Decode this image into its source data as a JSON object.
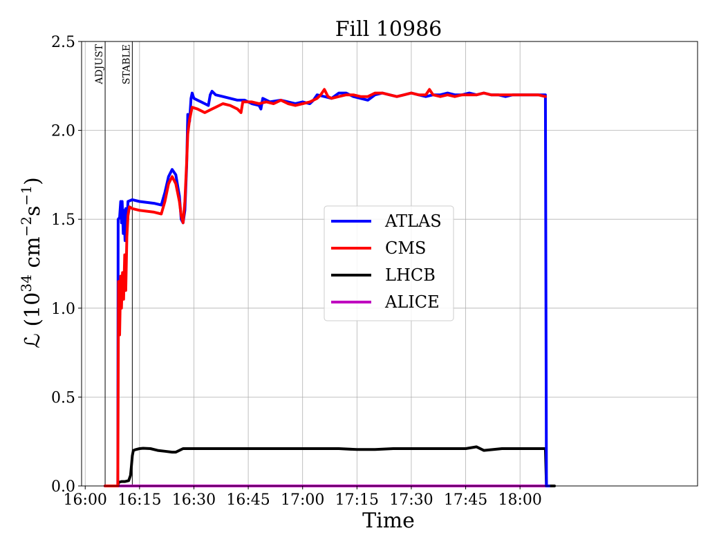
{
  "chart_data": {
    "type": "line",
    "title": "Fill 10986",
    "xlabel": "Time",
    "ylabel_main": "ℒ (10",
    "ylabel_exp1": "34",
    "ylabel_mid": " cm",
    "ylabel_exp2": "−2",
    "ylabel_s": "s",
    "ylabel_exp3": "−1",
    "ylabel_end": ")",
    "xlim_minutes": [
      -1,
      169
    ],
    "ylim": [
      0,
      2.5
    ],
    "grid": true,
    "legend_position": "center-right",
    "x_ticks": [
      {
        "minutes": 0,
        "label": "16:00"
      },
      {
        "minutes": 15,
        "label": "16:15"
      },
      {
        "minutes": 30,
        "label": "16:30"
      },
      {
        "minutes": 45,
        "label": "16:45"
      },
      {
        "minutes": 60,
        "label": "17:00"
      },
      {
        "minutes": 75,
        "label": "17:15"
      },
      {
        "minutes": 90,
        "label": "17:30"
      },
      {
        "minutes": 105,
        "label": "17:45"
      },
      {
        "minutes": 120,
        "label": "18:00"
      }
    ],
    "y_ticks": [
      {
        "value": 0,
        "label": "0.0"
      },
      {
        "value": 0.5,
        "label": "0.5"
      },
      {
        "value": 1.0,
        "label": "1.0"
      },
      {
        "value": 1.5,
        "label": "1.5"
      },
      {
        "value": 2.0,
        "label": "2.0"
      },
      {
        "value": 2.5,
        "label": "2.5"
      }
    ],
    "markers": [
      {
        "label": "ADJUST",
        "minutes": 5.5
      },
      {
        "label": "STABLE",
        "minutes": 13
      }
    ],
    "series": [
      {
        "name": "ATLAS",
        "color": "#0000ff",
        "points": [
          [
            5.5,
            0
          ],
          [
            9,
            0
          ],
          [
            9.1,
            1.5
          ],
          [
            9.5,
            1.51
          ],
          [
            9.8,
            1.6
          ],
          [
            10,
            1.48
          ],
          [
            10.2,
            1.6
          ],
          [
            10.5,
            1.42
          ],
          [
            10.7,
            1.55
          ],
          [
            11,
            1.38
          ],
          [
            11.2,
            1.56
          ],
          [
            11.5,
            1.45
          ],
          [
            11.8,
            1.6
          ],
          [
            13,
            1.61
          ],
          [
            15,
            1.6
          ],
          [
            19,
            1.59
          ],
          [
            21,
            1.58
          ],
          [
            22,
            1.65
          ],
          [
            23,
            1.74
          ],
          [
            24,
            1.78
          ],
          [
            25,
            1.75
          ],
          [
            26,
            1.63
          ],
          [
            26.5,
            1.5
          ],
          [
            27,
            1.48
          ],
          [
            27.5,
            1.55
          ],
          [
            28,
            1.8
          ],
          [
            28.3,
            2.09
          ],
          [
            28.8,
            2.05
          ],
          [
            29.2,
            2.18
          ],
          [
            29.5,
            2.21
          ],
          [
            30,
            2.18
          ],
          [
            31,
            2.17
          ],
          [
            32,
            2.16
          ],
          [
            33,
            2.15
          ],
          [
            34,
            2.14
          ],
          [
            34.5,
            2.2
          ],
          [
            35,
            2.22
          ],
          [
            36,
            2.2
          ],
          [
            38,
            2.19
          ],
          [
            40,
            2.18
          ],
          [
            42,
            2.17
          ],
          [
            44,
            2.17
          ],
          [
            46,
            2.15
          ],
          [
            48,
            2.14
          ],
          [
            48.5,
            2.12
          ],
          [
            49,
            2.18
          ],
          [
            51,
            2.16
          ],
          [
            54,
            2.17
          ],
          [
            56,
            2.16
          ],
          [
            58,
            2.15
          ],
          [
            60,
            2.16
          ],
          [
            62,
            2.15
          ],
          [
            63,
            2.17
          ],
          [
            64,
            2.2
          ],
          [
            66,
            2.19
          ],
          [
            68,
            2.18
          ],
          [
            70,
            2.21
          ],
          [
            72,
            2.21
          ],
          [
            74,
            2.19
          ],
          [
            76,
            2.18
          ],
          [
            78,
            2.17
          ],
          [
            80,
            2.2
          ],
          [
            82,
            2.21
          ],
          [
            84,
            2.2
          ],
          [
            86,
            2.19
          ],
          [
            88,
            2.2
          ],
          [
            90,
            2.21
          ],
          [
            92,
            2.2
          ],
          [
            94,
            2.19
          ],
          [
            96,
            2.2
          ],
          [
            98,
            2.2
          ],
          [
            100,
            2.21
          ],
          [
            102,
            2.2
          ],
          [
            104,
            2.2
          ],
          [
            106,
            2.21
          ],
          [
            108,
            2.2
          ],
          [
            110,
            2.21
          ],
          [
            112,
            2.2
          ],
          [
            114,
            2.2
          ],
          [
            116,
            2.19
          ],
          [
            118,
            2.2
          ],
          [
            120,
            2.2
          ],
          [
            122,
            2.2
          ],
          [
            125,
            2.2
          ],
          [
            127,
            2.2
          ],
          [
            127.3,
            0
          ],
          [
            128,
            0
          ]
        ]
      },
      {
        "name": "CMS",
        "color": "#ff0000",
        "points": [
          [
            5.5,
            0
          ],
          [
            9,
            0
          ],
          [
            9.2,
            1.15
          ],
          [
            9.5,
            0.85
          ],
          [
            9.8,
            1.18
          ],
          [
            10,
            1.0
          ],
          [
            10.3,
            1.2
          ],
          [
            10.6,
            1.05
          ],
          [
            10.9,
            1.3
          ],
          [
            11.2,
            1.1
          ],
          [
            11.5,
            1.4
          ],
          [
            11.8,
            1.52
          ],
          [
            12.2,
            1.57
          ],
          [
            13,
            1.56
          ],
          [
            15,
            1.55
          ],
          [
            19,
            1.54
          ],
          [
            21,
            1.53
          ],
          [
            22,
            1.6
          ],
          [
            23,
            1.7
          ],
          [
            24,
            1.74
          ],
          [
            25,
            1.7
          ],
          [
            26,
            1.6
          ],
          [
            26.5,
            1.52
          ],
          [
            27,
            1.48
          ],
          [
            27.5,
            1.6
          ],
          [
            28,
            1.82
          ],
          [
            28.3,
            1.98
          ],
          [
            28.8,
            2.06
          ],
          [
            29.2,
            2.1
          ],
          [
            29.5,
            2.13
          ],
          [
            31,
            2.12
          ],
          [
            33,
            2.1
          ],
          [
            35,
            2.12
          ],
          [
            36,
            2.13
          ],
          [
            38,
            2.15
          ],
          [
            40,
            2.14
          ],
          [
            42,
            2.12
          ],
          [
            43,
            2.1
          ],
          [
            43.5,
            2.16
          ],
          [
            46,
            2.16
          ],
          [
            48,
            2.15
          ],
          [
            50,
            2.16
          ],
          [
            52,
            2.15
          ],
          [
            54,
            2.17
          ],
          [
            56,
            2.15
          ],
          [
            58,
            2.14
          ],
          [
            60,
            2.15
          ],
          [
            62,
            2.16
          ],
          [
            64,
            2.18
          ],
          [
            65,
            2.2
          ],
          [
            66,
            2.23
          ],
          [
            67,
            2.19
          ],
          [
            68,
            2.18
          ],
          [
            70,
            2.19
          ],
          [
            72,
            2.2
          ],
          [
            74,
            2.2
          ],
          [
            76,
            2.19
          ],
          [
            78,
            2.19
          ],
          [
            80,
            2.21
          ],
          [
            82,
            2.21
          ],
          [
            84,
            2.2
          ],
          [
            86,
            2.19
          ],
          [
            88,
            2.2
          ],
          [
            90,
            2.21
          ],
          [
            92,
            2.2
          ],
          [
            94,
            2.2
          ],
          [
            95,
            2.23
          ],
          [
            96,
            2.2
          ],
          [
            98,
            2.19
          ],
          [
            100,
            2.2
          ],
          [
            102,
            2.19
          ],
          [
            104,
            2.2
          ],
          [
            106,
            2.2
          ],
          [
            108,
            2.2
          ],
          [
            110,
            2.21
          ],
          [
            112,
            2.2
          ],
          [
            114,
            2.2
          ],
          [
            116,
            2.2
          ],
          [
            118,
            2.2
          ],
          [
            120,
            2.2
          ],
          [
            122,
            2.2
          ],
          [
            125,
            2.2
          ],
          [
            127,
            2.19
          ]
        ]
      },
      {
        "name": "LHCB",
        "color": "#000000",
        "points": [
          [
            5.5,
            0
          ],
          [
            9,
            0
          ],
          [
            9.2,
            0.02
          ],
          [
            10,
            0.025
          ],
          [
            11,
            0.025
          ],
          [
            12,
            0.03
          ],
          [
            12.5,
            0.06
          ],
          [
            12.8,
            0.12
          ],
          [
            13,
            0.17
          ],
          [
            13.3,
            0.2
          ],
          [
            14,
            0.205
          ],
          [
            15,
            0.21
          ],
          [
            16,
            0.212
          ],
          [
            18,
            0.21
          ],
          [
            20,
            0.2
          ],
          [
            22,
            0.195
          ],
          [
            24,
            0.19
          ],
          [
            25,
            0.19
          ],
          [
            26,
            0.2
          ],
          [
            27,
            0.21
          ],
          [
            30,
            0.21
          ],
          [
            35,
            0.21
          ],
          [
            40,
            0.21
          ],
          [
            45,
            0.21
          ],
          [
            50,
            0.21
          ],
          [
            55,
            0.21
          ],
          [
            60,
            0.21
          ],
          [
            65,
            0.21
          ],
          [
            70,
            0.21
          ],
          [
            75,
            0.205
          ],
          [
            80,
            0.205
          ],
          [
            85,
            0.21
          ],
          [
            90,
            0.21
          ],
          [
            95,
            0.21
          ],
          [
            100,
            0.21
          ],
          [
            105,
            0.21
          ],
          [
            108,
            0.22
          ],
          [
            110,
            0.2
          ],
          [
            115,
            0.21
          ],
          [
            120,
            0.21
          ],
          [
            125,
            0.21
          ],
          [
            127,
            0.21
          ],
          [
            127.3,
            0
          ],
          [
            129.5,
            0
          ]
        ]
      },
      {
        "name": "ALICE",
        "color": "#bf00bf",
        "points": [
          [
            5.5,
            0
          ],
          [
            127.3,
            0
          ]
        ]
      }
    ]
  }
}
